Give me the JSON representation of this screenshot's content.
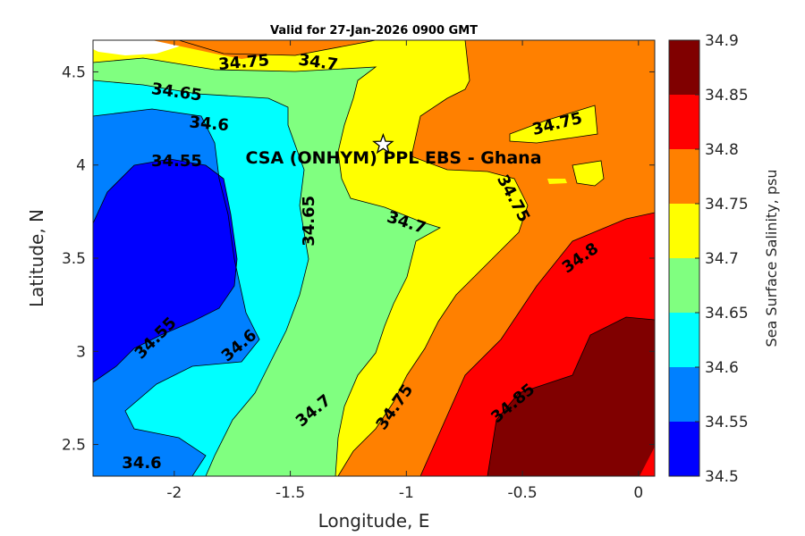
{
  "title": "Valid for 27-Jan-2026 0900 GMT",
  "xlabel": "Longitude, E",
  "ylabel": "Latitude, N",
  "colorbar_label": "Sea Surface Salinity, psu",
  "site_label": "CSA (ONHYM) PPL EBS  - Ghana",
  "site_marker": {
    "lon": -1.1,
    "lat": 4.11,
    "icon": "star-icon"
  },
  "axes": {
    "x_ticks": [
      -2,
      -1.5,
      -1,
      -0.5,
      0
    ],
    "x_tick_labels": [
      "-2",
      "-1.5",
      "-1",
      "-0.5",
      "0"
    ],
    "y_ticks": [
      2.5,
      3,
      3.5,
      4,
      4.5
    ],
    "y_tick_labels": [
      "2.5",
      "3",
      "3.5",
      "4",
      "4.5"
    ],
    "xlim": [
      -2.35,
      0.07
    ],
    "ylim": [
      2.33,
      4.67
    ]
  },
  "colorbar": {
    "levels": [
      "34.5",
      "34.55",
      "34.6",
      "34.65",
      "34.7",
      "34.75",
      "34.8",
      "34.85",
      "34.9"
    ],
    "colors": [
      "#0000ff",
      "#0080ff",
      "#00ffff",
      "#80ff80",
      "#ffff00",
      "#ff8000",
      "#ff0000",
      "#800000"
    ]
  },
  "contour_labels": [
    {
      "text": "34.75",
      "lon": -1.7,
      "lat": 4.55,
      "angle": -5
    },
    {
      "text": "34.7",
      "lon": -1.38,
      "lat": 4.55,
      "angle": 8
    },
    {
      "text": "34.65",
      "lon": -1.99,
      "lat": 4.39,
      "angle": 8
    },
    {
      "text": "34.6",
      "lon": -1.85,
      "lat": 4.22,
      "angle": 5
    },
    {
      "text": "34.55",
      "lon": -1.99,
      "lat": 4.02,
      "angle": 0
    },
    {
      "text": "34.65",
      "lon": -1.42,
      "lat": 3.7,
      "angle": -90
    },
    {
      "text": "34.7",
      "lon": -1.0,
      "lat": 3.69,
      "angle": 18
    },
    {
      "text": "34.75",
      "lon": -0.35,
      "lat": 4.22,
      "angle": -14
    },
    {
      "text": "34.75",
      "lon": -0.54,
      "lat": 3.82,
      "angle": 62
    },
    {
      "text": "34.8",
      "lon": -0.25,
      "lat": 3.5,
      "angle": -35
    },
    {
      "text": "34.55",
      "lon": -2.08,
      "lat": 3.07,
      "angle": -45
    },
    {
      "text": "34.6",
      "lon": -1.72,
      "lat": 3.03,
      "angle": -40
    },
    {
      "text": "34.7",
      "lon": -1.4,
      "lat": 2.68,
      "angle": -40
    },
    {
      "text": "34.75",
      "lon": -1.05,
      "lat": 2.7,
      "angle": -55
    },
    {
      "text": "34.85",
      "lon": -0.54,
      "lat": 2.72,
      "angle": -40
    },
    {
      "text": "34.6",
      "lon": -2.14,
      "lat": 2.4,
      "angle": 0
    }
  ]
}
